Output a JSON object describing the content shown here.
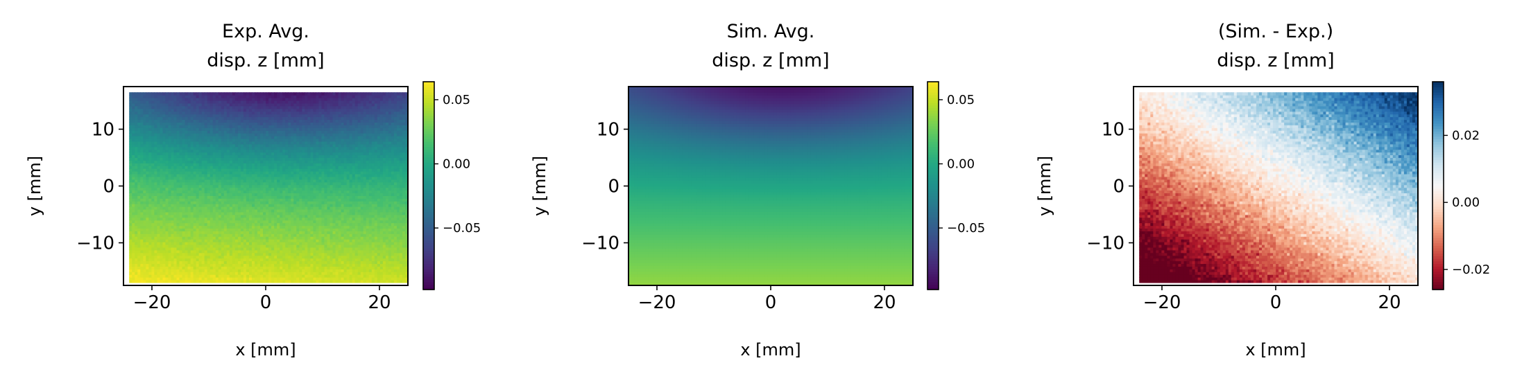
{
  "chart_data": [
    {
      "type": "heatmap",
      "title": [
        "Exp. Avg.",
        "disp. z [mm]"
      ],
      "xlabel": "x [mm]",
      "ylabel": "y [mm]",
      "xlim": [
        -25,
        25
      ],
      "ylim": [
        -17.5,
        17.5
      ],
      "xticks": [
        -20,
        0,
        20
      ],
      "xtick_labels": [
        "−20",
        "0",
        "20"
      ],
      "yticks": [
        -10,
        0,
        10
      ],
      "ytick_labels": [
        "−10",
        "0",
        "10"
      ],
      "colormap": "viridis",
      "clim": [
        -0.098,
        0.064
      ],
      "colorbar_ticks": [
        0.05,
        0.0,
        -0.05
      ],
      "colorbar_tick_labels": [
        "0.05",
        "0.00",
        "−0.05"
      ],
      "field": {
        "x_range": [
          -24,
          25
        ],
        "y_range": [
          -17,
          16.5
        ],
        "dome_min": -0.092,
        "dome_center_x": 2,
        "bottom_value": 0.058,
        "tilt_per_mm": -0.0002,
        "noise": 0.004
      }
    },
    {
      "type": "heatmap",
      "title": [
        "Sim. Avg.",
        "disp. z [mm]"
      ],
      "xlabel": "x [mm]",
      "ylabel": "y [mm]",
      "xlim": [
        -25,
        25
      ],
      "ylim": [
        -17.5,
        17.5
      ],
      "xticks": [
        -20,
        0,
        20
      ],
      "xtick_labels": [
        "−20",
        "0",
        "20"
      ],
      "yticks": [
        -10,
        0,
        10
      ],
      "ytick_labels": [
        "−10",
        "0",
        "10"
      ],
      "colormap": "viridis",
      "clim": [
        -0.098,
        0.064
      ],
      "colorbar_ticks": [
        0.05,
        0.0,
        -0.05
      ],
      "colorbar_tick_labels": [
        "0.05",
        "0.00",
        "−0.05"
      ],
      "field": {
        "x_range": [
          -25,
          25
        ],
        "y_range": [
          -17.5,
          17.5
        ],
        "dome_min": -0.09,
        "dome_center_x": 2,
        "bottom_value": 0.038,
        "tilt_per_mm": 0,
        "noise": 0
      }
    },
    {
      "type": "heatmap",
      "title": [
        "(Sim. - Exp.)",
        "disp. z [mm]"
      ],
      "xlabel": "x [mm]",
      "ylabel": "y [mm]",
      "xlim": [
        -25,
        25
      ],
      "ylim": [
        -17.5,
        17.5
      ],
      "xticks": [
        -20,
        0,
        20
      ],
      "xtick_labels": [
        "−20",
        "0",
        "20"
      ],
      "yticks": [
        -10,
        0,
        10
      ],
      "ytick_labels": [
        "−10",
        "0",
        "10"
      ],
      "colormap": "RdBu",
      "clim": [
        -0.026,
        0.036
      ],
      "colorbar_ticks": [
        0.02,
        0.0,
        -0.02
      ],
      "colorbar_tick_labels": [
        "0.02",
        "0.00",
        "−0.02"
      ],
      "field": {
        "x_range": [
          -24,
          25
        ],
        "y_range": [
          -17,
          16.5
        ],
        "gradient_x": 0.0007,
        "gradient_y": 0.0011,
        "offset": 0.001,
        "noise": 0.004
      }
    }
  ]
}
